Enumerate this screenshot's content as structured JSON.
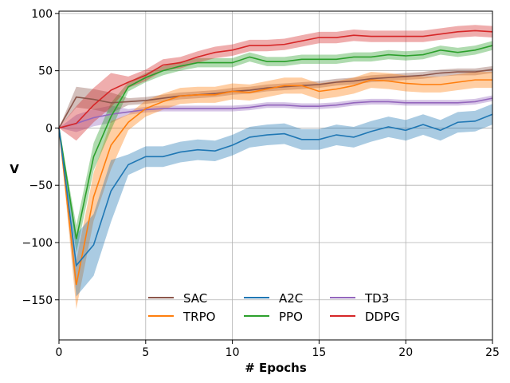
{
  "chart_data": {
    "type": "line",
    "title": "",
    "xlabel": "# Epochs",
    "ylabel": "V",
    "xlim": [
      0,
      25
    ],
    "ylim": [
      -185,
      102
    ],
    "xticks": [
      0,
      5,
      10,
      15,
      20,
      25
    ],
    "yticks": [
      -150,
      -100,
      -50,
      0,
      50,
      100
    ],
    "grid": true,
    "legend": {
      "placement": "bottom-center",
      "columns": 3
    },
    "x": [
      0,
      1,
      2,
      3,
      4,
      5,
      6,
      7,
      8,
      9,
      10,
      11,
      12,
      13,
      14,
      15,
      16,
      17,
      18,
      19,
      20,
      21,
      22,
      23,
      24,
      25
    ],
    "series": [
      {
        "name": "SAC",
        "color": "#8c564b",
        "values": [
          0,
          27,
          25,
          22,
          23,
          24,
          26,
          28,
          29,
          30,
          32,
          33,
          35,
          36,
          37,
          38,
          40,
          41,
          43,
          44,
          45,
          46,
          48,
          49,
          49,
          51
        ],
        "band": 3
      },
      {
        "name": "TRPO",
        "color": "#ff7f0e",
        "values": [
          0,
          -137,
          -60,
          -15,
          5,
          17,
          23,
          28,
          29,
          29,
          32,
          31,
          34,
          37,
          37,
          32,
          34,
          37,
          42,
          41,
          39,
          38,
          38,
          40,
          42,
          42
        ],
        "band": 7
      },
      {
        "name": "A2C",
        "color": "#1f77b4",
        "values": [
          0,
          -120,
          -102,
          -55,
          -32,
          -25,
          -25,
          -21,
          -19,
          -20,
          -15,
          -8,
          -6,
          -5,
          -10,
          -10,
          -6,
          -8,
          -3,
          1,
          -2,
          3,
          -2,
          5,
          6,
          12
        ],
        "band": 9
      },
      {
        "name": "PPO",
        "color": "#2ca02c",
        "values": [
          0,
          -97,
          -25,
          10,
          36,
          44,
          50,
          54,
          57,
          57,
          57,
          62,
          58,
          58,
          60,
          60,
          60,
          62,
          62,
          64,
          63,
          64,
          68,
          66,
          68,
          72
        ],
        "band": 4
      },
      {
        "name": "TD3",
        "color": "#9467bd",
        "values": [
          0,
          4,
          9,
          12,
          14,
          16,
          17,
          17,
          17,
          17,
          17,
          18,
          20,
          20,
          19,
          19,
          20,
          22,
          23,
          23,
          22,
          22,
          22,
          22,
          23,
          26
        ],
        "band": 2.5
      },
      {
        "name": "DDPG",
        "color": "#d62728",
        "values": [
          0,
          4,
          20,
          33,
          40,
          46,
          55,
          57,
          62,
          66,
          68,
          72,
          72,
          73,
          76,
          79,
          79,
          81,
          80,
          80,
          80,
          80,
          82,
          84,
          85,
          84
        ],
        "band": 5
      }
    ]
  }
}
